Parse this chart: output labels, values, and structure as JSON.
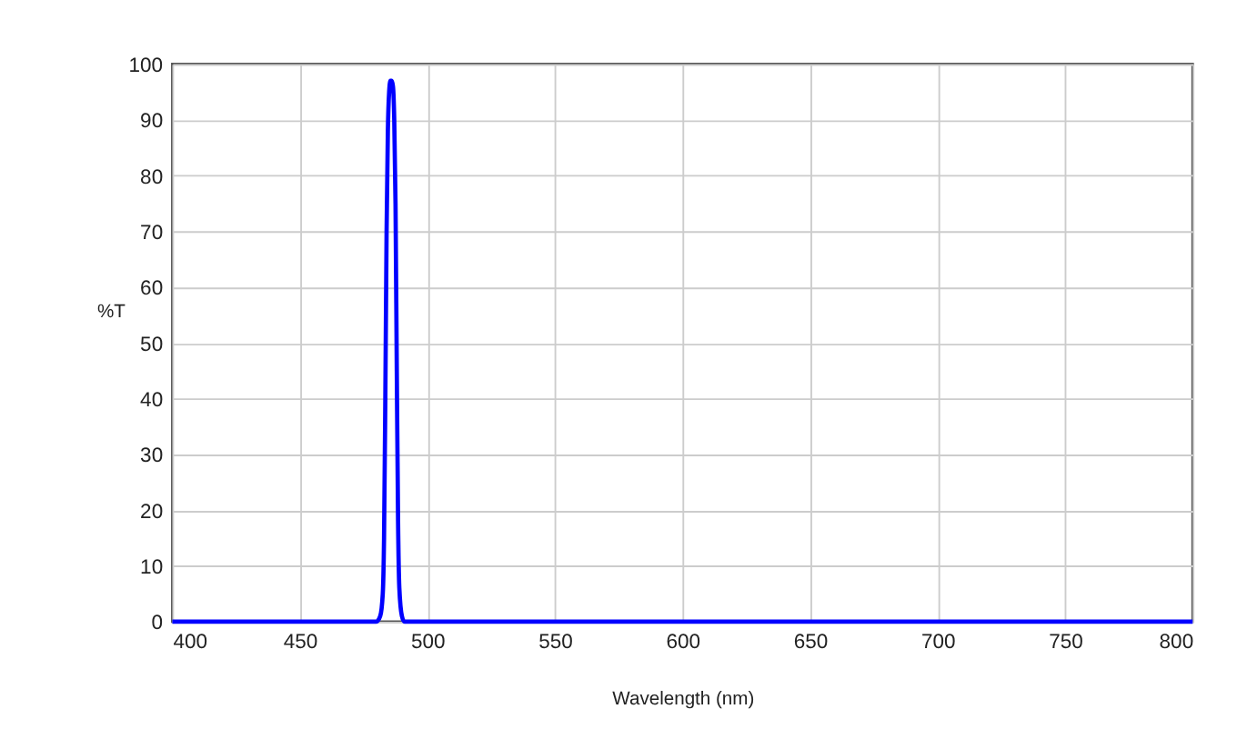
{
  "chart_data": {
    "type": "line",
    "xlabel": "Wavelength (nm)",
    "ylabel": "%T",
    "series": [
      {
        "color": "#0000ff",
        "x": [
          400,
          480,
          481.5,
          482.5,
          483,
          483.5,
          484,
          484.5,
          485,
          485.5,
          486,
          486.5,
          487,
          487.5,
          488,
          488.5,
          489,
          490,
          491,
          800
        ],
        "values": [
          0,
          0,
          1,
          5,
          15,
          40,
          70,
          88,
          95,
          97,
          97,
          96,
          90,
          75,
          45,
          18,
          6,
          1,
          0,
          0
        ]
      }
    ],
    "xlim": [
      400,
      800
    ],
    "xticks": [
      400,
      450,
      500,
      550,
      600,
      650,
      700,
      750,
      800
    ],
    "ylim": [
      0,
      100
    ],
    "yticks": [
      0,
      10,
      20,
      30,
      40,
      50,
      60,
      70,
      80,
      90,
      100
    ],
    "grid": true,
    "legend": false,
    "marker": "none",
    "line_style": "solid"
  }
}
